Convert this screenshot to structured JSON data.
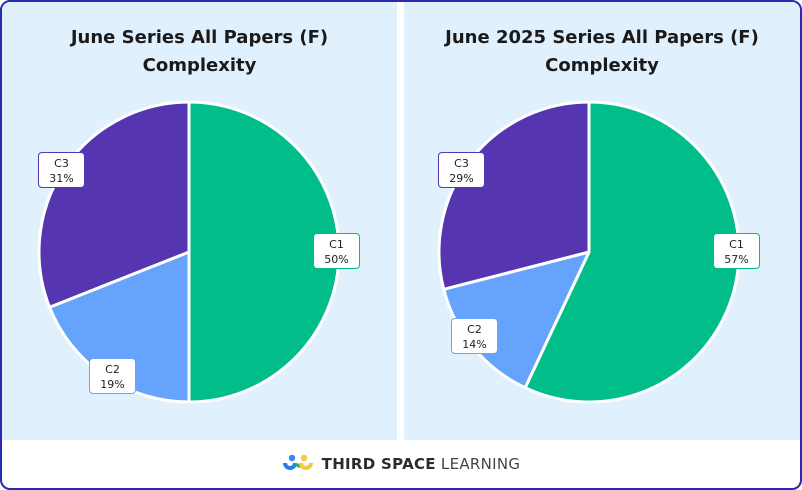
{
  "chart_data": [
    {
      "type": "pie",
      "title": "June Series All Papers (F) Complexity",
      "title_lines": [
        "June Series All Papers (F)",
        "Complexity"
      ],
      "categories": [
        "C1",
        "C2",
        "C3"
      ],
      "values": [
        50,
        19,
        31
      ],
      "value_labels": [
        "50%",
        "19%",
        "31%"
      ],
      "colors": [
        "#00bd8a",
        "#66a3fd",
        "#5535b0"
      ]
    },
    {
      "type": "pie",
      "title": "June 2025 Series All Papers (F) Complexity",
      "title_lines": [
        "June 2025 Series All Papers (F)",
        "Complexity"
      ],
      "categories": [
        "C1",
        "C2",
        "C3"
      ],
      "values": [
        57,
        14,
        29
      ],
      "value_labels": [
        "57%",
        "14%",
        "29%"
      ],
      "colors": [
        "#00bd8a",
        "#66a3fd",
        "#5535b0"
      ]
    }
  ],
  "footer": {
    "brand_bold": "THIRD SPACE",
    "brand_light": "LEARNING"
  },
  "colors": {
    "border": "#2a2ab0",
    "panel_bg": "#e1f0fd"
  }
}
